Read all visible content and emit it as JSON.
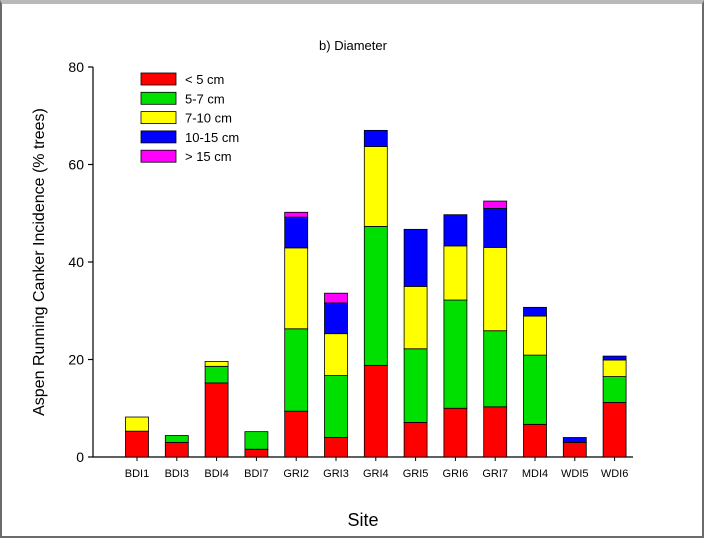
{
  "chart_data": {
    "type": "bar",
    "stacked": true,
    "title": "b) Diameter",
    "xlabel": "Site",
    "ylabel": "Aspen Running Canker Incidence (% trees)",
    "ylim": [
      0,
      80
    ],
    "yticks": [
      "0",
      "20",
      "40",
      "60",
      "80"
    ],
    "grid": false,
    "legend_position": "top-left",
    "categories": [
      "BDI1",
      "BDI3",
      "BDI4",
      "BDI7",
      "GRI2",
      "GRI3",
      "GRI4",
      "GRI5",
      "GRI6",
      "GRI7",
      "MDI4",
      "WDI5",
      "WDI6"
    ],
    "series": [
      {
        "name": "< 5 cm",
        "color": "#ff0000",
        "values": [
          5.3,
          3.0,
          15.2,
          1.6,
          9.4,
          4.0,
          18.8,
          7.1,
          10.0,
          10.3,
          6.7,
          3.0,
          11.2
        ]
      },
      {
        "name": "5-7 cm",
        "color": "#00e000",
        "values": [
          0,
          1.4,
          3.4,
          3.6,
          16.9,
          12.7,
          28.5,
          15.1,
          22.2,
          15.6,
          14.2,
          0,
          5.3
        ]
      },
      {
        "name": "7-10 cm",
        "color": "#ffff00",
        "values": [
          2.9,
          0,
          1.0,
          0,
          16.6,
          8.6,
          16.4,
          12.8,
          11.1,
          17.1,
          8.0,
          0,
          3.4
        ]
      },
      {
        "name": "10-15 cm",
        "color": "#0000ff",
        "values": [
          0,
          0,
          0,
          0,
          6.3,
          6.3,
          3.3,
          11.7,
          6.4,
          8.0,
          1.8,
          1.0,
          0.8
        ]
      },
      {
        "name": "> 15 cm",
        "color": "#ff00ff",
        "values": [
          0,
          0,
          0,
          0,
          1.0,
          2.0,
          0,
          0,
          0,
          1.5,
          0,
          0,
          0
        ]
      }
    ]
  }
}
